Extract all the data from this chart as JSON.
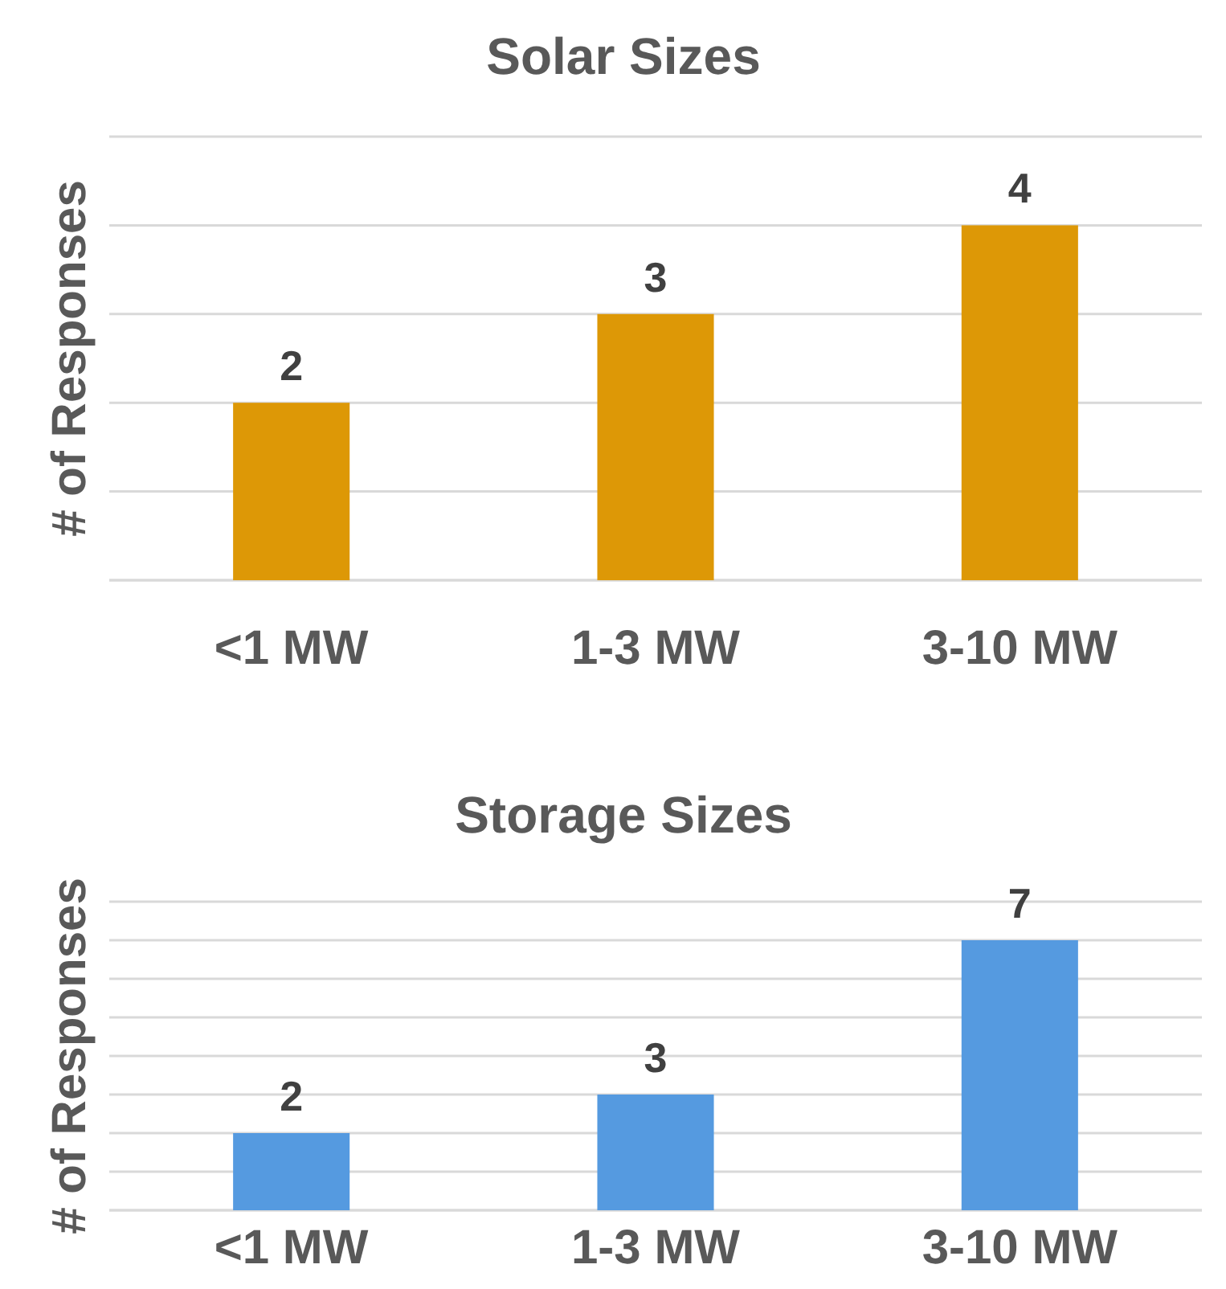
{
  "chart_data": [
    {
      "type": "bar",
      "title": "Solar Sizes",
      "ylabel": "# of Responses",
      "categories": [
        "<1 MW",
        "1-3 MW",
        "3-10 MW"
      ],
      "values": [
        2,
        3,
        4
      ],
      "color": "#dd9806",
      "ylim": [
        0,
        5
      ],
      "yticks": [
        {
          "value": 0,
          "label": null
        },
        {
          "value": 1,
          "label": null
        },
        {
          "value": 2,
          "label": null
        },
        {
          "value": 3,
          "label": null
        },
        {
          "value": 4,
          "label": null
        },
        {
          "value": 5,
          "label": null
        }
      ],
      "grid": "y",
      "tick_labels": "x",
      "data_labels": true
    },
    {
      "type": "bar",
      "title": "Storage Sizes",
      "ylabel": "# of Responses",
      "categories": [
        "<1 MW",
        "1-3 MW",
        "3-10 MW"
      ],
      "values": [
        2,
        3,
        7
      ],
      "color": "#559ae0",
      "ylim": [
        0,
        8
      ],
      "yticks": [
        {
          "value": 0,
          "label": null
        },
        {
          "value": 1,
          "label": null
        },
        {
          "value": 2,
          "label": null
        },
        {
          "value": 3,
          "label": null
        },
        {
          "value": 4,
          "label": null
        },
        {
          "value": 5,
          "label": null
        },
        {
          "value": 6,
          "label": null
        },
        {
          "value": 7,
          "label": null
        },
        {
          "value": 8,
          "label": null
        }
      ],
      "grid": "y",
      "tick_labels": "x",
      "data_labels": true
    }
  ]
}
